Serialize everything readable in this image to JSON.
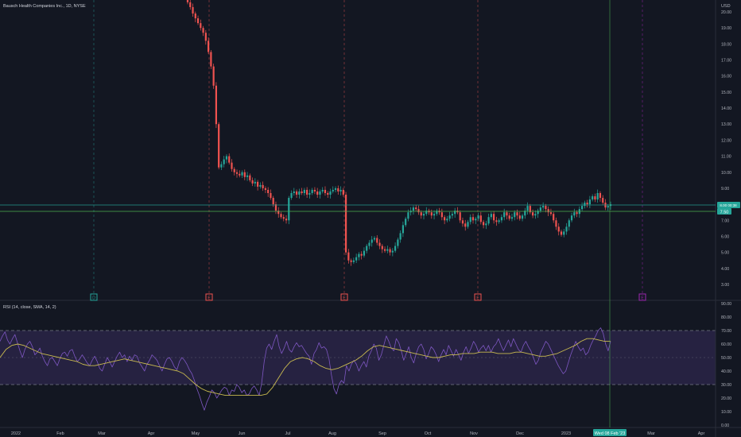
{
  "header": {
    "symbol_title": "Bausch Health Companies Inc., 1D, NYSE",
    "currency": "USD",
    "rsi_title": "RSI (14, close, SMA, 14, 2)"
  },
  "colors": {
    "background": "#131722",
    "up": "#26a69a",
    "down": "#ef5350",
    "rsi_line": "#7e57c2",
    "rsi_ma": "#c8b94f",
    "rsi_band": "#2a2446",
    "crosshair": "#4caf50",
    "event_dividend": "#26a69a",
    "event_earnings": "#ef5350",
    "event_future": "#9c27b0"
  },
  "badges": {
    "last_price": "8.00 00:38",
    "crosshair_price": "7.50",
    "crosshair_date": "Wed 08 Feb '23"
  },
  "x_axis_labels": [
    "2022",
    "Feb",
    "Mar",
    "Apr",
    "May",
    "Jun",
    "Jul",
    "Aug",
    "Sep",
    "Oct",
    "Nov",
    "Dec",
    "2023",
    "Mar",
    "Apr"
  ],
  "chart_data": [
    {
      "type": "candlestick",
      "title": "Bausch Health Companies Inc., 1D, NYSE",
      "ylabel": "USD",
      "y_ticks": [
        "20.00",
        "19.00",
        "18.00",
        "17.00",
        "16.00",
        "15.00",
        "14.00",
        "13.00",
        "12.00",
        "11.00",
        "10.00",
        "9.00",
        "8.00",
        "7.00",
        "6.00",
        "5.00",
        "4.00",
        "3.00"
      ],
      "ylim": [
        2.5,
        20.7
      ],
      "last_price": 8.0,
      "crosshair_price": 7.5,
      "series": [
        {
          "name": "Bausch Health Companies Inc.",
          "close": [
            20.6,
            20.3,
            19.9,
            19.6,
            19.3,
            19.0,
            18.7,
            18.2,
            17.5,
            16.6,
            15.4,
            13.0,
            10.3,
            10.5,
            10.8,
            11.0,
            10.6,
            10.2,
            10.0,
            9.9,
            9.8,
            10.0,
            9.7,
            9.8,
            9.5,
            9.3,
            9.4,
            9.1,
            9.2,
            9.0,
            8.9,
            8.7,
            8.4,
            8.0,
            7.6,
            7.4,
            7.2,
            7.1,
            7.0,
            8.4,
            8.7,
            8.8,
            8.6,
            8.8,
            8.7,
            8.9,
            8.6,
            8.7,
            8.9,
            8.8,
            8.6,
            8.8,
            8.9,
            8.7,
            8.6,
            8.8,
            8.9,
            9.0,
            8.8,
            8.9,
            8.6,
            5.0,
            4.5,
            4.4,
            4.5,
            4.7,
            4.9,
            4.8,
            5.1,
            5.4,
            5.6,
            5.8,
            5.9,
            5.6,
            5.4,
            5.2,
            5.1,
            5.2,
            5.0,
            5.1,
            5.4,
            5.8,
            6.2,
            6.7,
            7.1,
            7.5,
            7.6,
            7.8,
            7.7,
            7.5,
            7.3,
            7.4,
            7.6,
            7.5,
            7.3,
            7.4,
            7.6,
            7.5,
            7.2,
            7.0,
            7.1,
            7.3,
            7.4,
            7.6,
            7.5,
            7.0,
            6.8,
            6.6,
            6.9,
            7.2,
            7.0,
            7.1,
            7.3,
            6.9,
            6.7,
            6.8,
            7.2,
            7.4,
            7.0,
            6.9,
            7.0,
            7.2,
            7.5,
            7.3,
            7.1,
            7.2,
            7.5,
            7.3,
            7.1,
            7.3,
            7.6,
            7.9,
            7.5,
            7.3,
            7.4,
            7.6,
            7.8,
            7.9,
            7.7,
            7.5,
            7.4,
            7.0,
            6.6,
            6.3,
            6.1,
            6.3,
            6.6,
            7.0,
            7.3,
            7.5,
            7.4,
            7.7,
            7.9,
            8.1,
            8.0,
            8.3,
            8.5,
            8.3,
            8.7,
            8.4,
            8.1,
            7.8,
            7.9,
            8.0
          ]
        }
      ]
    },
    {
      "type": "line",
      "title": "RSI (14, close, SMA, 14, 2)",
      "y_ticks": [
        "90.00",
        "80.00",
        "70.00",
        "60.00",
        "50.00",
        "40.00",
        "30.00",
        "20.00",
        "10.00",
        "0.00"
      ],
      "ylim": [
        0,
        90
      ],
      "bands": {
        "upper": 70,
        "middle": 50,
        "lower": 30
      },
      "series": [
        {
          "name": "RSI",
          "values": [
            62,
            66,
            69,
            63,
            60,
            64,
            67,
            61,
            55,
            50,
            56,
            60,
            62,
            58,
            52,
            54,
            57,
            51,
            47,
            44,
            49,
            50,
            47,
            44,
            49,
            53,
            54,
            51,
            55,
            56,
            51,
            47,
            49,
            52,
            49,
            46,
            44,
            48,
            51,
            47,
            42,
            40,
            45,
            50,
            47,
            43,
            47,
            51,
            54,
            50,
            52,
            47,
            51,
            48,
            52,
            51,
            46,
            43,
            40,
            45,
            48,
            52,
            50,
            48,
            44,
            40,
            45,
            49,
            50,
            47,
            43,
            41,
            47,
            50,
            48,
            45,
            41,
            38,
            33,
            27,
            22,
            16,
            11,
            17,
            21,
            26,
            24,
            20,
            23,
            26,
            28,
            27,
            22,
            26,
            25,
            30,
            28,
            24,
            26,
            22,
            23,
            27,
            29,
            26,
            22,
            31,
            47,
            57,
            60,
            56,
            62,
            67,
            58,
            53,
            57,
            62,
            56,
            54,
            58,
            61,
            58,
            59,
            56,
            53,
            51,
            45,
            53,
            56,
            61,
            57,
            58,
            56,
            49,
            37,
            27,
            23,
            30,
            33,
            31,
            44,
            40,
            45,
            48,
            45,
            40,
            44,
            47,
            43,
            51,
            55,
            60,
            57,
            48,
            52,
            59,
            66,
            62,
            57,
            55,
            64,
            61,
            55,
            48,
            53,
            58,
            50,
            46,
            53,
            58,
            60,
            56,
            49,
            53,
            58,
            56,
            52,
            47,
            52,
            56,
            52,
            59,
            55,
            51,
            56,
            52,
            48,
            54,
            58,
            53,
            57,
            62,
            59,
            54,
            57,
            59,
            55,
            59,
            54,
            58,
            60,
            64,
            59,
            55,
            59,
            63,
            58,
            64,
            60,
            56,
            54,
            59,
            62,
            58,
            55,
            50,
            45,
            48,
            54,
            58,
            62,
            60,
            56,
            52,
            48,
            44,
            41,
            38,
            40,
            46,
            52,
            57,
            62,
            58,
            55,
            57,
            52,
            54,
            59,
            63,
            66,
            70,
            72,
            68,
            60,
            55,
            62
          ]
        },
        {
          "name": "RSI-based MA",
          "values": [
            50,
            56,
            59,
            60,
            59,
            57,
            55,
            53,
            52,
            51,
            50,
            49,
            48,
            47,
            45,
            44,
            44,
            45,
            46,
            47,
            48,
            49,
            48,
            47,
            46,
            45,
            44,
            43,
            42,
            41,
            40,
            38,
            34,
            30,
            27,
            25,
            24,
            23,
            22,
            22,
            22,
            22,
            22,
            22,
            22,
            23,
            28,
            35,
            42,
            47,
            49,
            50,
            49,
            47,
            44,
            42,
            41,
            42,
            44,
            46,
            48,
            51,
            55,
            58,
            59,
            58,
            57,
            56,
            55,
            54,
            53,
            52,
            51,
            50,
            50,
            51,
            52,
            52,
            53,
            53,
            53,
            54,
            54,
            54,
            53,
            53,
            53,
            54,
            54,
            53,
            52,
            51,
            51,
            52,
            53,
            55,
            57,
            59,
            62,
            64,
            64,
            63,
            62,
            62
          ]
        }
      ]
    }
  ]
}
